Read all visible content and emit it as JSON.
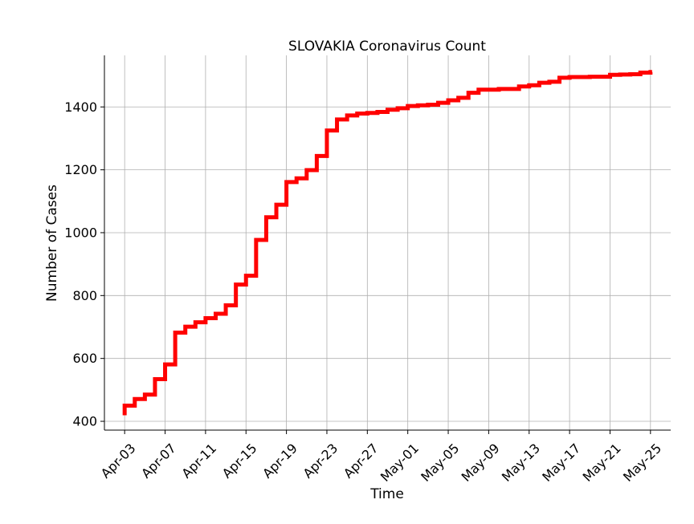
{
  "chart_data": {
    "type": "line",
    "title": "SLOVAKIA Coronavirus Count",
    "xlabel": "Time",
    "ylabel": "Number of Cases",
    "ylim": [
      372,
      1564
    ],
    "xlim": [
      "2020-04-01",
      "2020-05-27"
    ],
    "grid": true,
    "step": true,
    "line_color": "#ff0000",
    "x_ticks": [
      {
        "date": "2020-04-03",
        "label": "Apr-03"
      },
      {
        "date": "2020-04-07",
        "label": "Apr-07"
      },
      {
        "date": "2020-04-11",
        "label": "Apr-11"
      },
      {
        "date": "2020-04-15",
        "label": "Apr-15"
      },
      {
        "date": "2020-04-19",
        "label": "Apr-19"
      },
      {
        "date": "2020-04-23",
        "label": "Apr-23"
      },
      {
        "date": "2020-04-27",
        "label": "Apr-27"
      },
      {
        "date": "2020-05-01",
        "label": "May-01"
      },
      {
        "date": "2020-05-05",
        "label": "May-05"
      },
      {
        "date": "2020-05-09",
        "label": "May-09"
      },
      {
        "date": "2020-05-13",
        "label": "May-13"
      },
      {
        "date": "2020-05-17",
        "label": "May-17"
      },
      {
        "date": "2020-05-21",
        "label": "May-21"
      },
      {
        "date": "2020-05-25",
        "label": "May-25"
      }
    ],
    "y_ticks": [
      400,
      600,
      800,
      1000,
      1200,
      1400
    ],
    "series": [
      {
        "x": [
          "2020-04-03",
          "2020-04-04",
          "2020-04-05",
          "2020-04-06",
          "2020-04-07",
          "2020-04-08",
          "2020-04-09",
          "2020-04-10",
          "2020-04-11",
          "2020-04-12",
          "2020-04-13",
          "2020-04-14",
          "2020-04-15",
          "2020-04-16",
          "2020-04-17",
          "2020-04-18",
          "2020-04-19",
          "2020-04-20",
          "2020-04-21",
          "2020-04-22",
          "2020-04-23",
          "2020-04-24",
          "2020-04-25",
          "2020-04-26",
          "2020-04-27",
          "2020-04-28",
          "2020-04-29",
          "2020-04-30",
          "2020-05-01",
          "2020-05-02",
          "2020-05-03",
          "2020-05-04",
          "2020-05-05",
          "2020-05-06",
          "2020-05-07",
          "2020-05-08",
          "2020-05-09",
          "2020-05-10",
          "2020-05-11",
          "2020-05-12",
          "2020-05-13",
          "2020-05-14",
          "2020-05-15",
          "2020-05-16",
          "2020-05-17",
          "2020-05-18",
          "2020-05-19",
          "2020-05-20",
          "2020-05-21",
          "2020-05-22",
          "2020-05-23",
          "2020-05-24",
          "2020-05-25"
        ],
        "values": [
          450,
          471,
          485,
          534,
          581,
          682,
          701,
          715,
          728,
          742,
          769,
          835,
          863,
          977,
          1049,
          1089,
          1161,
          1173,
          1199,
          1244,
          1325,
          1360,
          1373,
          1379,
          1381,
          1384,
          1391,
          1396,
          1403,
          1405,
          1407,
          1413,
          1421,
          1429,
          1445,
          1455,
          1455,
          1457,
          1457,
          1465,
          1469,
          1477,
          1480,
          1493,
          1495,
          1495,
          1496,
          1496,
          1502,
          1503,
          1504,
          1509,
          1511
        ]
      }
    ]
  }
}
